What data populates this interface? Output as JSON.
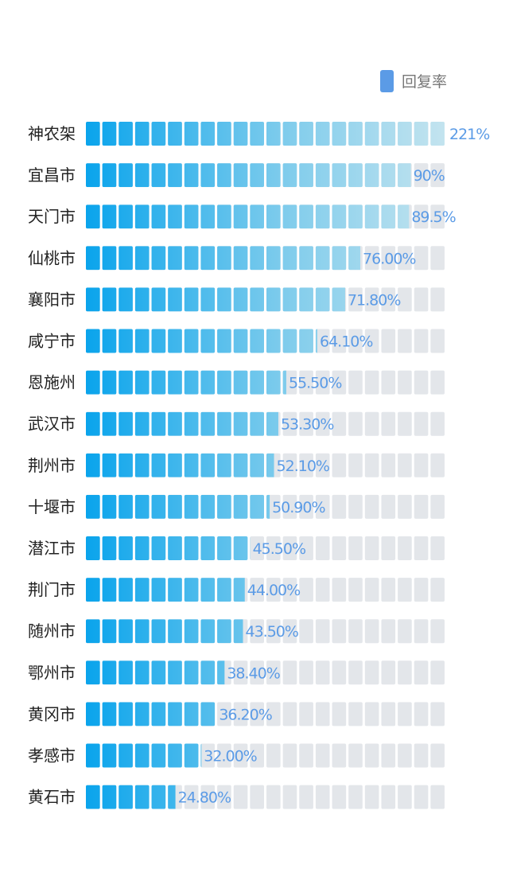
{
  "chart_data": {
    "type": "bar",
    "orientation": "horizontal",
    "categories": [
      "神农架",
      "宜昌市",
      "天门市",
      "仙桃市",
      "襄阳市",
      "咸宁市",
      "恩施州",
      "武汉市",
      "荆州市",
      "十堰市",
      "潜江市",
      "荆门市",
      "随州市",
      "鄂州市",
      "黄冈市",
      "孝感市",
      "黄石市"
    ],
    "series": [
      {
        "name": "回复率",
        "values": [
          221,
          90,
          89.5,
          76.0,
          71.8,
          64.1,
          55.5,
          53.3,
          52.1,
          50.9,
          45.5,
          44.0,
          43.5,
          38.4,
          36.2,
          32.0,
          24.8
        ]
      }
    ],
    "value_labels": [
      "221%",
      "90%",
      "89.5%",
      "76.00%",
      "71.80%",
      "64.10%",
      "55.50%",
      "53.30%",
      "52.10%",
      "50.90%",
      "45.50%",
      "44.00%",
      "43.50%",
      "38.40%",
      "36.20%",
      "32.00%",
      "24.80%"
    ],
    "unit": "%",
    "legend": "top-right",
    "grid": false,
    "colors": {
      "bar_start": "#0aa4ec",
      "bar_end": "#b8e0ef",
      "track": "#e3e6ea",
      "value_text": "#5b9be6",
      "legend_swatch": "#5b9be6"
    }
  }
}
